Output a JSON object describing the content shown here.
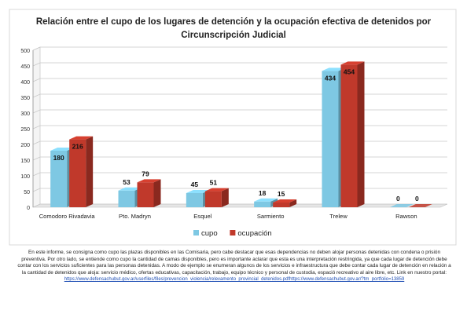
{
  "chart_data": {
    "type": "bar",
    "title_line1": "Relación entre el cupo de los lugares de detención y la ocupación efectiva de detenidos por",
    "title_line2": "Circunscripción Judicial",
    "categories": [
      "Comodoro Rivadavia",
      "Pto. Madryn",
      "Esquel",
      "Sarmiento",
      "Trelew",
      "Rawson"
    ],
    "series": [
      {
        "name": "cupo",
        "values": [
          180,
          53,
          45,
          18,
          434,
          0
        ],
        "color": "#7ec8e3"
      },
      {
        "name": "ocupación",
        "values": [
          216,
          79,
          51,
          15,
          454,
          0
        ],
        "color": "#c0392b"
      }
    ],
    "ylim": [
      0,
      500
    ],
    "yticks": [
      "0",
      "50",
      "100",
      "150",
      "200",
      "250",
      "300",
      "350",
      "400",
      "450",
      "500"
    ],
    "grid": true,
    "legend_position": "bottom-center",
    "style": "3d-column"
  },
  "caption": {
    "text": "En este informe, se consigna como cupo las plazas disponibles en las Comisaria, pero cabe destacar que esas dependencias no deben alojar personas detenidas con condena o prisión preventiva.  Por otro lado, se entiende como cupo la cantidad de camas disponibles, pero es importante aclarar que esta es una interpretación restringida, ya que cada lugar de detención debe contar con los servicios suficientes para las personas detenidas. A modo de ejemplo se enumeran algunos de los servicios e infraestructura que debe contar cada lugar de detención en relación a la cantidad de detenidos que aloja: servicio médico, ofertas educativas, capacitación, trabajo, equipo técnico y personal de custodia, espació recreativo al aire libre, etc. Link en nuestro portal:",
    "link": "https://www.defensachubut.gov.ar/userfiles/files/prevencion_violencia/relevamento_provincial_detenidos.pdfhttps://www.defensachubut.gov.ar/?tm_portfolio=13859"
  }
}
